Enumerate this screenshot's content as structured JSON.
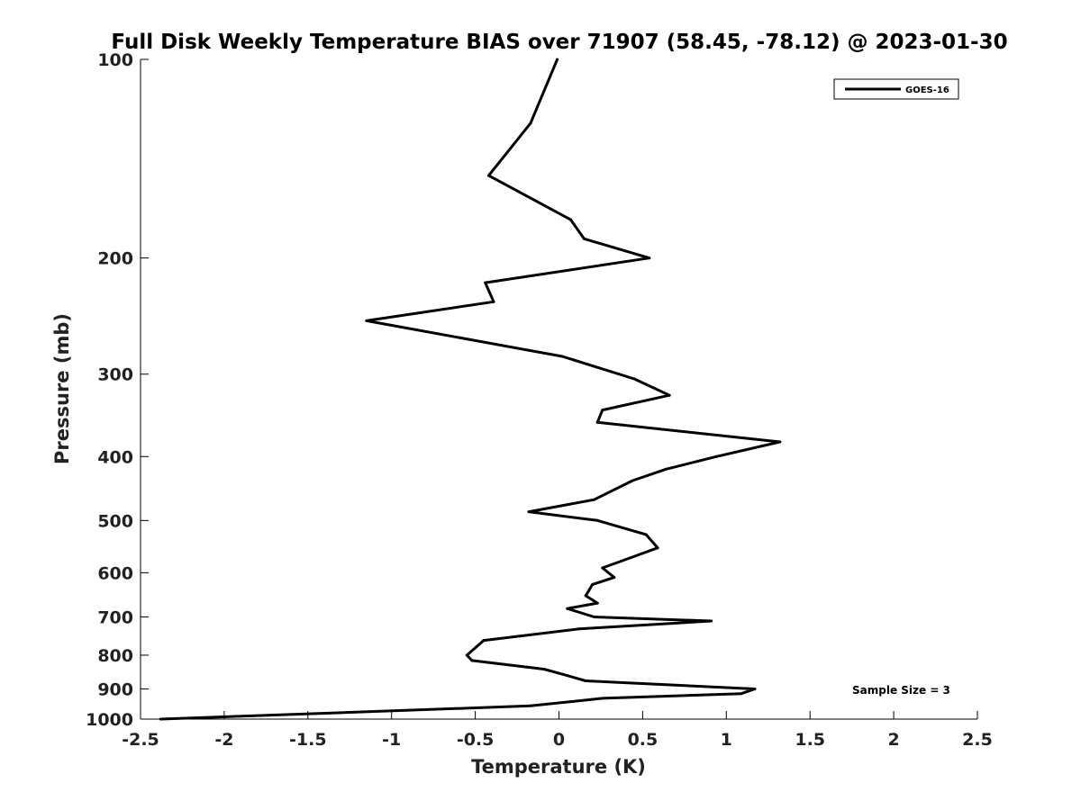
{
  "chart_data": {
    "type": "line",
    "title": "Full Disk Weekly Temperature BIAS over 71907 (58.45, -78.12) @ 2023-01-30",
    "xlabel": "Temperature (K)",
    "ylabel": "Pressure (mb)",
    "xlim": [
      -2.5,
      2.5
    ],
    "ylim": [
      100,
      1000
    ],
    "y_scale": "log",
    "y_reversed": true,
    "x_ticks": [
      "-2.5",
      "-2",
      "-1.5",
      "-1",
      "-0.5",
      "0",
      "0.5",
      "1",
      "1.5",
      "2",
      "2.5"
    ],
    "y_ticks": [
      "100",
      "200",
      "300",
      "400",
      "500",
      "600",
      "700",
      "800",
      "900",
      "1000"
    ],
    "grid": false,
    "legend_position": "top-right",
    "annotation": "Sample Size = 3",
    "series": [
      {
        "name": "GOES-16",
        "color": "#000000",
        "points": [
          {
            "temp": -0.01,
            "pressure": 100
          },
          {
            "temp": -0.17,
            "pressure": 125
          },
          {
            "temp": -0.42,
            "pressure": 150
          },
          {
            "temp": 0.07,
            "pressure": 175
          },
          {
            "temp": 0.15,
            "pressure": 187
          },
          {
            "temp": 0.54,
            "pressure": 200
          },
          {
            "temp": -0.44,
            "pressure": 218
          },
          {
            "temp": -0.39,
            "pressure": 233
          },
          {
            "temp": -1.15,
            "pressure": 249
          },
          {
            "temp": 0.02,
            "pressure": 282
          },
          {
            "temp": 0.45,
            "pressure": 305
          },
          {
            "temp": 0.66,
            "pressure": 323
          },
          {
            "temp": 0.26,
            "pressure": 340
          },
          {
            "temp": 0.23,
            "pressure": 355
          },
          {
            "temp": 1.32,
            "pressure": 380
          },
          {
            "temp": 0.94,
            "pressure": 400
          },
          {
            "temp": 0.64,
            "pressure": 418
          },
          {
            "temp": 0.44,
            "pressure": 435
          },
          {
            "temp": 0.21,
            "pressure": 465
          },
          {
            "temp": -0.18,
            "pressure": 485
          },
          {
            "temp": 0.23,
            "pressure": 500
          },
          {
            "temp": 0.52,
            "pressure": 525
          },
          {
            "temp": 0.59,
            "pressure": 550
          },
          {
            "temp": 0.44,
            "pressure": 568
          },
          {
            "temp": 0.26,
            "pressure": 590
          },
          {
            "temp": 0.33,
            "pressure": 610
          },
          {
            "temp": 0.2,
            "pressure": 625
          },
          {
            "temp": 0.16,
            "pressure": 650
          },
          {
            "temp": 0.23,
            "pressure": 667
          },
          {
            "temp": 0.05,
            "pressure": 680
          },
          {
            "temp": 0.21,
            "pressure": 700
          },
          {
            "temp": 0.91,
            "pressure": 710
          },
          {
            "temp": 0.12,
            "pressure": 730
          },
          {
            "temp": -0.45,
            "pressure": 760
          },
          {
            "temp": -0.55,
            "pressure": 800
          },
          {
            "temp": -0.52,
            "pressure": 815
          },
          {
            "temp": -0.09,
            "pressure": 840
          },
          {
            "temp": 0.02,
            "pressure": 855
          },
          {
            "temp": 0.16,
            "pressure": 875
          },
          {
            "temp": 1.17,
            "pressure": 900
          },
          {
            "temp": 1.09,
            "pressure": 915
          },
          {
            "temp": 0.26,
            "pressure": 930
          },
          {
            "temp": -0.17,
            "pressure": 955
          },
          {
            "temp": -2.38,
            "pressure": 1000
          }
        ]
      }
    ]
  }
}
